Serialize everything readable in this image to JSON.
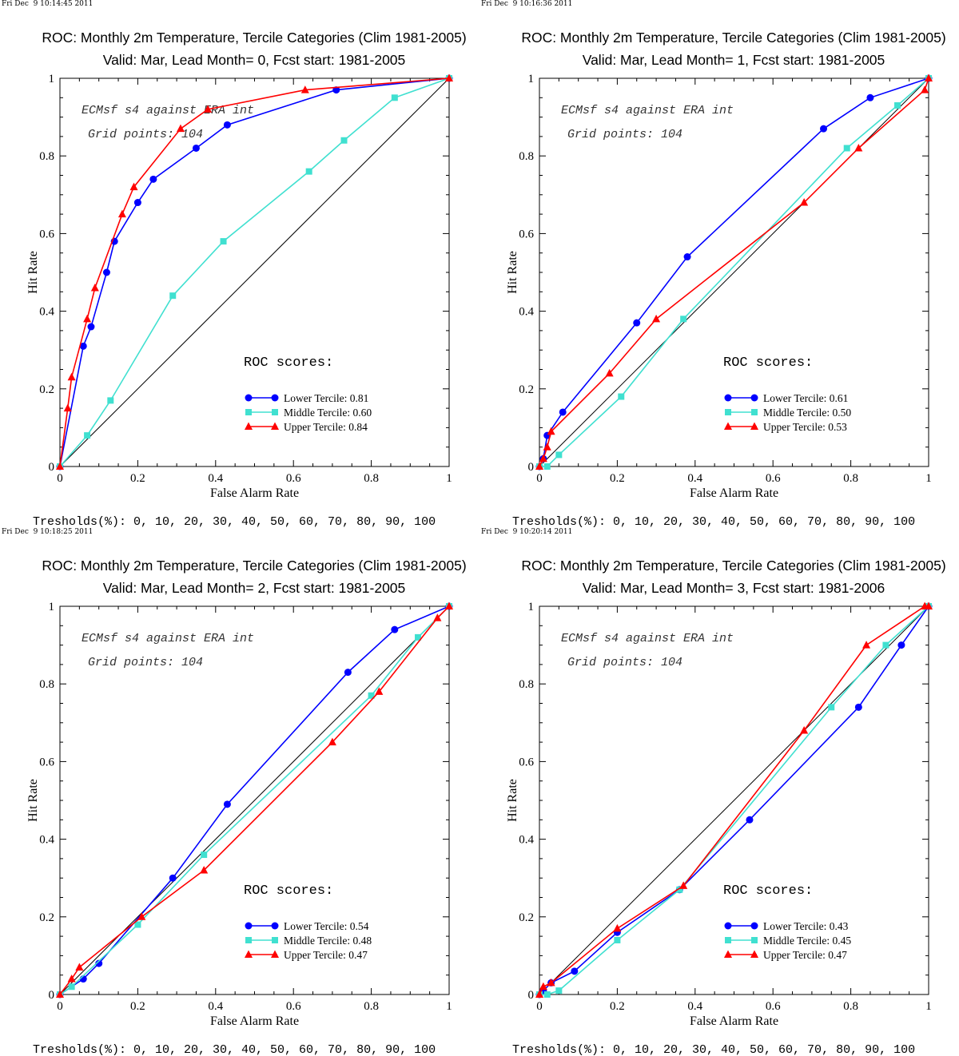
{
  "thresholds_label": "Tresholds(%): 0, 10, 20, 30, 40, 50, 60, 70, 80, 90, 100",
  "roc_scores_label": "ROC scores:",
  "annotation_line1": "ECMsf s4 against ERA int",
  "annotation_line2": "Grid points:  104",
  "colors": {
    "lower": "#0000ff",
    "middle": "#40e0d0",
    "upper": "#ff0000",
    "diagonal": "#000000"
  },
  "chart_data": [
    {
      "type": "line",
      "timestamp": "Fri Dec  9 10:14:45 2011",
      "title": "ROC: Monthly 2m Temperature, Tercile Categories (Clim 1981-2005)",
      "subtitle": "Valid: Mar, Lead Month= 0, Fcst start: 1981-2005",
      "xlabel": "False Alarm Rate",
      "ylabel": "Hit Rate",
      "xlim": [
        0,
        1
      ],
      "ylim": [
        0,
        1
      ],
      "xticks": [
        "0",
        "0.2",
        "0.4",
        "0.6",
        "0.8",
        "1"
      ],
      "yticks": [
        "0",
        "0.2",
        "0.4",
        "0.6",
        "0.8",
        "1"
      ],
      "legend_position": "bottom-right",
      "series": [
        {
          "name": "Lower Tercile: 0.81",
          "key": "lower",
          "marker": "circle",
          "points": [
            [
              0,
              0
            ],
            [
              0.06,
              0.31
            ],
            [
              0.08,
              0.36
            ],
            [
              0.12,
              0.5
            ],
            [
              0.14,
              0.58
            ],
            [
              0.2,
              0.68
            ],
            [
              0.24,
              0.74
            ],
            [
              0.35,
              0.82
            ],
            [
              0.43,
              0.88
            ],
            [
              0.71,
              0.97
            ],
            [
              1,
              1
            ]
          ]
        },
        {
          "name": "Middle Tercile: 0.60",
          "key": "middle",
          "marker": "square",
          "points": [
            [
              0,
              0
            ],
            [
              0.07,
              0.08
            ],
            [
              0.13,
              0.17
            ],
            [
              0.29,
              0.44
            ],
            [
              0.42,
              0.58
            ],
            [
              0.64,
              0.76
            ],
            [
              0.73,
              0.84
            ],
            [
              0.86,
              0.95
            ],
            [
              1,
              1
            ]
          ]
        },
        {
          "name": "Upper Tercile: 0.84",
          "key": "upper",
          "marker": "triangle",
          "points": [
            [
              0,
              0
            ],
            [
              0.02,
              0.15
            ],
            [
              0.03,
              0.23
            ],
            [
              0.07,
              0.38
            ],
            [
              0.09,
              0.46
            ],
            [
              0.16,
              0.65
            ],
            [
              0.19,
              0.72
            ],
            [
              0.31,
              0.87
            ],
            [
              0.38,
              0.92
            ],
            [
              0.63,
              0.97
            ],
            [
              1,
              1
            ]
          ]
        }
      ]
    },
    {
      "type": "line",
      "timestamp": "Fri Dec  9 10:16:36 2011",
      "title": "ROC: Monthly 2m Temperature, Tercile Categories (Clim 1981-2005)",
      "subtitle": "Valid: Mar, Lead Month= 1, Fcst start: 1981-2005",
      "xlabel": "False Alarm Rate",
      "ylabel": "Hit Rate",
      "xlim": [
        0,
        1
      ],
      "ylim": [
        0,
        1
      ],
      "xticks": [
        "0",
        "0.2",
        "0.4",
        "0.6",
        "0.8",
        "1"
      ],
      "yticks": [
        "0",
        "0.2",
        "0.4",
        "0.6",
        "0.8",
        "1"
      ],
      "legend_position": "bottom-right",
      "series": [
        {
          "name": "Lower Tercile: 0.61",
          "key": "lower",
          "marker": "circle",
          "points": [
            [
              0,
              0
            ],
            [
              0.01,
              0.02
            ],
            [
              0.02,
              0.08
            ],
            [
              0.06,
              0.14
            ],
            [
              0.25,
              0.37
            ],
            [
              0.38,
              0.54
            ],
            [
              0.73,
              0.87
            ],
            [
              0.85,
              0.95
            ],
            [
              1,
              1
            ]
          ]
        },
        {
          "name": "Middle Tercile: 0.50",
          "key": "middle",
          "marker": "square",
          "points": [
            [
              0,
              0
            ],
            [
              0.02,
              0.0
            ],
            [
              0.05,
              0.03
            ],
            [
              0.21,
              0.18
            ],
            [
              0.37,
              0.38
            ],
            [
              0.79,
              0.82
            ],
            [
              0.92,
              0.93
            ],
            [
              1,
              1
            ]
          ]
        },
        {
          "name": "Upper Tercile: 0.53",
          "key": "upper",
          "marker": "triangle",
          "points": [
            [
              0,
              0
            ],
            [
              0.01,
              0.02
            ],
            [
              0.02,
              0.05
            ],
            [
              0.03,
              0.09
            ],
            [
              0.18,
              0.24
            ],
            [
              0.3,
              0.38
            ],
            [
              0.68,
              0.68
            ],
            [
              0.82,
              0.82
            ],
            [
              0.99,
              0.97
            ],
            [
              1,
              1
            ]
          ]
        }
      ]
    },
    {
      "type": "line",
      "timestamp": "Fri Dec  9 10:18:25 2011",
      "title": "ROC: Monthly 2m Temperature, Tercile Categories (Clim 1981-2005)",
      "subtitle": "Valid: Mar, Lead Month= 2, Fcst start: 1981-2005",
      "xlabel": "False Alarm Rate",
      "ylabel": "Hit Rate",
      "xlim": [
        0,
        1
      ],
      "ylim": [
        0,
        1
      ],
      "xticks": [
        "0",
        "0.2",
        "0.4",
        "0.6",
        "0.8",
        "1"
      ],
      "yticks": [
        "0",
        "0.2",
        "0.4",
        "0.6",
        "0.8",
        "1"
      ],
      "legend_position": "bottom-right",
      "series": [
        {
          "name": "Lower Tercile: 0.54",
          "key": "lower",
          "marker": "circle",
          "points": [
            [
              0,
              0
            ],
            [
              0.06,
              0.04
            ],
            [
              0.1,
              0.08
            ],
            [
              0.29,
              0.3
            ],
            [
              0.43,
              0.49
            ],
            [
              0.74,
              0.83
            ],
            [
              0.86,
              0.94
            ],
            [
              1,
              1
            ]
          ]
        },
        {
          "name": "Middle Tercile: 0.48",
          "key": "middle",
          "marker": "square",
          "points": [
            [
              0,
              0
            ],
            [
              0.03,
              0.02
            ],
            [
              0.2,
              0.18
            ],
            [
              0.37,
              0.36
            ],
            [
              0.8,
              0.77
            ],
            [
              0.92,
              0.92
            ],
            [
              1,
              1
            ]
          ]
        },
        {
          "name": "Upper Tercile: 0.47",
          "key": "upper",
          "marker": "triangle",
          "points": [
            [
              0,
              0
            ],
            [
              0.03,
              0.04
            ],
            [
              0.05,
              0.07
            ],
            [
              0.21,
              0.2
            ],
            [
              0.37,
              0.32
            ],
            [
              0.7,
              0.65
            ],
            [
              0.82,
              0.78
            ],
            [
              0.97,
              0.97
            ],
            [
              1,
              1
            ]
          ]
        }
      ]
    },
    {
      "type": "line",
      "timestamp": "Fri Dec  9 10:20:14 2011",
      "title": "ROC: Monthly 2m Temperature, Tercile Categories (Clim 1981-2005)",
      "subtitle": "Valid: Mar, Lead Month= 3, Fcst start: 1981-2006",
      "xlabel": "False Alarm Rate",
      "ylabel": "Hit Rate",
      "xlim": [
        0,
        1
      ],
      "ylim": [
        0,
        1
      ],
      "xticks": [
        "0",
        "0.2",
        "0.4",
        "0.6",
        "0.8",
        "1"
      ],
      "yticks": [
        "0",
        "0.2",
        "0.4",
        "0.6",
        "0.8",
        "1"
      ],
      "legend_position": "bottom-right",
      "series": [
        {
          "name": "Lower Tercile: 0.43",
          "key": "lower",
          "marker": "circle",
          "points": [
            [
              0,
              0
            ],
            [
              0.01,
              0.01
            ],
            [
              0.03,
              0.03
            ],
            [
              0.09,
              0.06
            ],
            [
              0.2,
              0.16
            ],
            [
              0.36,
              0.27
            ],
            [
              0.54,
              0.45
            ],
            [
              0.82,
              0.74
            ],
            [
              0.93,
              0.9
            ],
            [
              1,
              1
            ]
          ]
        },
        {
          "name": "Middle Tercile: 0.45",
          "key": "middle",
          "marker": "square",
          "points": [
            [
              0,
              0
            ],
            [
              0.02,
              0.0
            ],
            [
              0.05,
              0.01
            ],
            [
              0.2,
              0.14
            ],
            [
              0.36,
              0.27
            ],
            [
              0.75,
              0.74
            ],
            [
              0.89,
              0.9
            ],
            [
              1,
              1
            ]
          ]
        },
        {
          "name": "Upper Tercile: 0.47",
          "key": "upper",
          "marker": "triangle",
          "points": [
            [
              0,
              0
            ],
            [
              0.01,
              0.02
            ],
            [
              0.03,
              0.03
            ],
            [
              0.2,
              0.17
            ],
            [
              0.37,
              0.28
            ],
            [
              0.68,
              0.68
            ],
            [
              0.84,
              0.9
            ],
            [
              0.99,
              1.0
            ],
            [
              1,
              1
            ]
          ]
        }
      ]
    }
  ]
}
